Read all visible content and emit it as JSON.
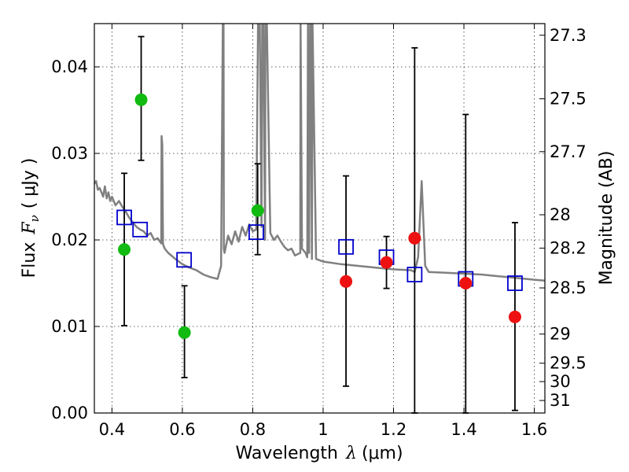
{
  "chart_data": {
    "type": "scatter",
    "title": "",
    "xlabel": "Wavelength",
    "xlabel_symbol": "λ",
    "xlabel_units": "(μm)",
    "ylabel": "Flux",
    "ylabel_symbol": "F",
    "ylabel_subscript": "ν",
    "ylabel_units": "( μJy )",
    "y2label": "Magnitude (AB)",
    "xlim": [
      0.35,
      1.63
    ],
    "ylim": [
      0.0,
      0.045
    ],
    "grid": true,
    "x_ticks": [
      {
        "value": 0.4,
        "label": "0.4"
      },
      {
        "value": 0.6,
        "label": "0.6"
      },
      {
        "value": 0.8,
        "label": "0.8"
      },
      {
        "value": 1.0,
        "label": "1"
      },
      {
        "value": 1.2,
        "label": "1.2"
      },
      {
        "value": 1.4,
        "label": "1.4"
      },
      {
        "value": 1.6,
        "label": "1.6"
      }
    ],
    "y_ticks": [
      {
        "value": 0.0,
        "label": "0.00"
      },
      {
        "value": 0.01,
        "label": "0.01"
      },
      {
        "value": 0.02,
        "label": "0.02"
      },
      {
        "value": 0.03,
        "label": "0.03"
      },
      {
        "value": 0.04,
        "label": "0.04"
      }
    ],
    "y2_ticks": [
      {
        "mag": 27.3,
        "label": "27.3"
      },
      {
        "mag": 27.5,
        "label": "27.5"
      },
      {
        "mag": 27.7,
        "label": "27.7"
      },
      {
        "mag": 28.0,
        "label": "28"
      },
      {
        "mag": 28.2,
        "label": "28.2"
      },
      {
        "mag": 28.5,
        "label": "28.5"
      },
      {
        "mag": 29.0,
        "label": "29"
      },
      {
        "mag": 29.5,
        "label": "29.5"
      },
      {
        "mag": 30.0,
        "label": "30"
      },
      {
        "mag": 31.0,
        "label": "31"
      }
    ],
    "colors": {
      "model": "#808080",
      "green": "#11bb11",
      "red": "#ee1111",
      "square": "#0000cc",
      "errorbar": "#000000",
      "grid": "#333333"
    },
    "model_spectrum": {
      "name": "model SED",
      "x": [
        0.35,
        0.355,
        0.36,
        0.365,
        0.37,
        0.375,
        0.38,
        0.385,
        0.39,
        0.395,
        0.4,
        0.41,
        0.42,
        0.43,
        0.44,
        0.45,
        0.46,
        0.47,
        0.48,
        0.49,
        0.5,
        0.51,
        0.52,
        0.53,
        0.54,
        0.541,
        0.543,
        0.545,
        0.55,
        0.56,
        0.58,
        0.6,
        0.62,
        0.64,
        0.66,
        0.68,
        0.7,
        0.71,
        0.715,
        0.717,
        0.718,
        0.72,
        0.73,
        0.74,
        0.75,
        0.76,
        0.77,
        0.78,
        0.79,
        0.8,
        0.81,
        0.815,
        0.82,
        0.825,
        0.827,
        0.83,
        0.835,
        0.836,
        0.84,
        0.85,
        0.86,
        0.87,
        0.88,
        0.89,
        0.9,
        0.91,
        0.92,
        0.935,
        0.936,
        0.94,
        0.95,
        0.955,
        0.957,
        0.96,
        0.963,
        0.965,
        0.968,
        0.97,
        0.98,
        1.0,
        1.05,
        1.1,
        1.15,
        1.2,
        1.25,
        1.26,
        1.27,
        1.28,
        1.29,
        1.3,
        1.35,
        1.4,
        1.45,
        1.5,
        1.55,
        1.6,
        1.63
      ],
      "y": [
        0.0265,
        0.0268,
        0.0258,
        0.026,
        0.0255,
        0.025,
        0.0262,
        0.0248,
        0.0255,
        0.0245,
        0.025,
        0.024,
        0.0245,
        0.0238,
        0.0232,
        0.0225,
        0.022,
        0.0215,
        0.0212,
        0.021,
        0.0205,
        0.0208,
        0.02,
        0.0202,
        0.0196,
        0.032,
        0.031,
        0.0195,
        0.019,
        0.0185,
        0.0178,
        0.0172,
        0.0168,
        0.0165,
        0.016,
        0.0157,
        0.0155,
        0.017,
        0.045,
        0.045,
        0.019,
        0.0185,
        0.0205,
        0.0195,
        0.021,
        0.0198,
        0.0215,
        0.0205,
        0.0218,
        0.021,
        0.0212,
        0.045,
        0.045,
        0.0215,
        0.045,
        0.045,
        0.02,
        0.045,
        0.045,
        0.0208,
        0.02,
        0.0205,
        0.0198,
        0.0192,
        0.0188,
        0.019,
        0.0182,
        0.0185,
        0.045,
        0.019,
        0.0185,
        0.018,
        0.045,
        0.0185,
        0.045,
        0.045,
        0.0178,
        0.045,
        0.0178,
        0.0175,
        0.0172,
        0.017,
        0.0168,
        0.0166,
        0.0165,
        0.0163,
        0.018,
        0.0268,
        0.017,
        0.0163,
        0.0162,
        0.0161,
        0.016,
        0.0158,
        0.0156,
        0.0154,
        0.0153
      ]
    },
    "series": [
      {
        "name": "green points",
        "marker": "circle",
        "color": "green",
        "points": [
          {
            "x": 0.435,
            "y": 0.0189,
            "err_low": 0.0101,
            "err_high": 0.0277
          },
          {
            "x": 0.483,
            "y": 0.0362,
            "err_low": 0.0292,
            "err_high": 0.0435
          },
          {
            "x": 0.606,
            "y": 0.0093,
            "err_low": 0.0041,
            "err_high": 0.0147
          },
          {
            "x": 0.814,
            "y": 0.0234,
            "err_low": 0.0183,
            "err_high": 0.0288
          }
        ]
      },
      {
        "name": "red points",
        "marker": "circle",
        "color": "red",
        "points": [
          {
            "x": 1.065,
            "y": 0.0152,
            "err_low": 0.0031,
            "err_high": 0.0274
          },
          {
            "x": 1.18,
            "y": 0.0174,
            "err_low": 0.0144,
            "err_high": 0.0204
          },
          {
            "x": 1.26,
            "y": 0.0202,
            "err_low": 0.0,
            "err_high": 0.0422
          },
          {
            "x": 1.405,
            "y": 0.015,
            "err_low": 0.0,
            "err_high": 0.0345
          },
          {
            "x": 1.545,
            "y": 0.0111,
            "err_low": 0.0003,
            "err_high": 0.022
          }
        ]
      },
      {
        "name": "model magnitudes",
        "marker": "square",
        "color": "square",
        "points": [
          {
            "x": 0.435,
            "y": 0.0226
          },
          {
            "x": 0.48,
            "y": 0.0212
          },
          {
            "x": 0.605,
            "y": 0.0177
          },
          {
            "x": 0.81,
            "y": 0.0209
          },
          {
            "x": 1.065,
            "y": 0.0192
          },
          {
            "x": 1.18,
            "y": 0.018
          },
          {
            "x": 1.26,
            "y": 0.016
          },
          {
            "x": 1.405,
            "y": 0.0155
          },
          {
            "x": 1.545,
            "y": 0.015
          }
        ]
      }
    ]
  }
}
